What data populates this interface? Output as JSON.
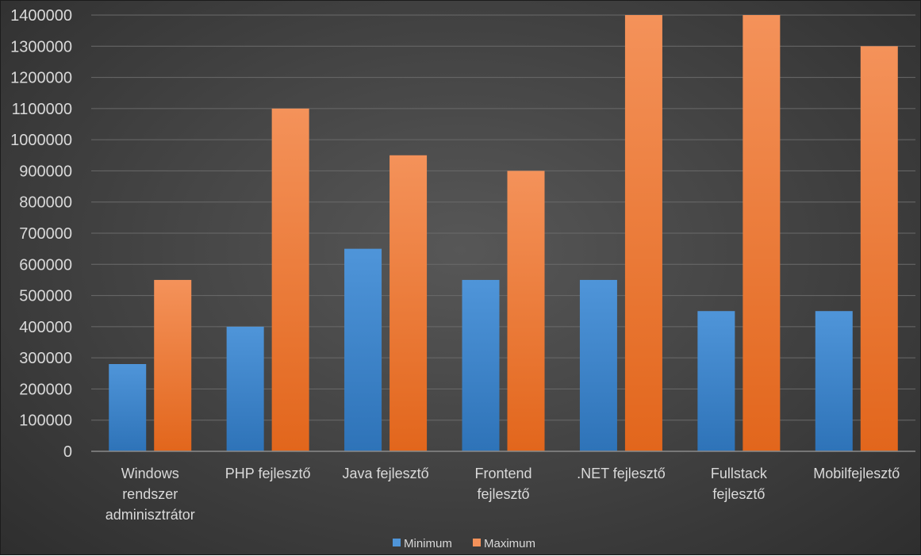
{
  "chart_data": {
    "type": "bar",
    "categories": [
      [
        "Windows",
        "rendszer",
        "adminisztrátor"
      ],
      [
        "PHP fejlesztő"
      ],
      [
        "Java fejlesztő"
      ],
      [
        "Frontend",
        "fejlesztő"
      ],
      [
        ".NET fejlesztő"
      ],
      [
        "Fullstack",
        "fejlesztő"
      ],
      [
        "Mobilfejlesztő"
      ]
    ],
    "series": [
      {
        "name": "Minimum",
        "color": "#4f95d9",
        "color_dark": "#2e73b8",
        "values": [
          280000,
          400000,
          650000,
          550000,
          550000,
          450000,
          450000
        ]
      },
      {
        "name": "Maximum",
        "color": "#f4925a",
        "color_dark": "#e2661c",
        "values": [
          550000,
          1100000,
          950000,
          900000,
          1400000,
          1400000,
          1300000
        ]
      }
    ],
    "ylim": [
      0,
      1400000
    ],
    "yticks": [
      "0",
      "100000",
      "200000",
      "300000",
      "400000",
      "500000",
      "600000",
      "700000",
      "800000",
      "900000",
      "1000000",
      "1100000",
      "1200000",
      "1300000",
      "1400000"
    ],
    "grid": true,
    "legend_position": "bottom"
  }
}
